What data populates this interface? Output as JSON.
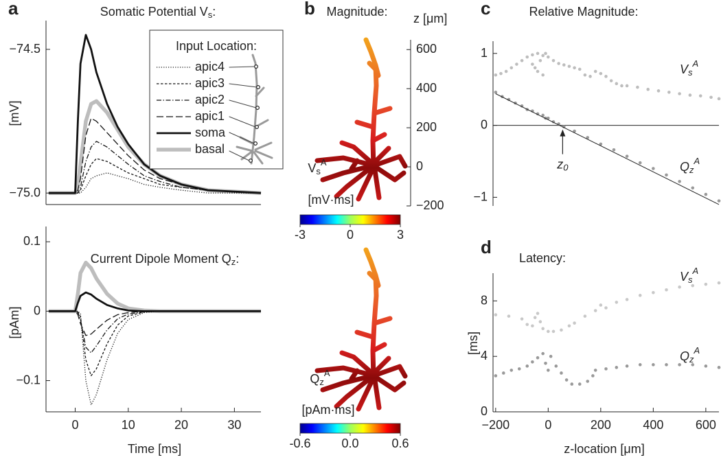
{
  "chart_data": [
    {
      "type": "line",
      "panel": "a",
      "title": "Somatic Potential V_s:",
      "ylabel": "[mV]",
      "xlim": [
        -5.5,
        35
      ],
      "ylim": [
        -75.04,
        -74.4
      ],
      "yticks": [
        {
          "value": -74.5,
          "label": "−74.5"
        },
        {
          "value": -75,
          "label": "−75.0"
        }
      ],
      "legend_title": "Input Location:",
      "legend": "upper right",
      "x": [
        -5,
        0,
        0.5,
        1,
        2,
        3,
        4,
        6,
        8,
        10,
        13,
        16,
        20,
        25,
        35
      ],
      "series": [
        {
          "name": "apic4",
          "color": "#111111",
          "style": "dotted",
          "linewidth": 1.3,
          "values": [
            -75,
            -75,
            -75,
            -75,
            -74.98,
            -74.95,
            -74.94,
            -74.93,
            -74.94,
            -74.95,
            -74.97,
            -74.98,
            -74.99,
            -75,
            -75
          ]
        },
        {
          "name": "apic3",
          "color": "#111111",
          "style": "dashed",
          "linewidth": 1.3,
          "values": [
            -75,
            -75,
            -75,
            -74.99,
            -74.94,
            -74.9,
            -74.88,
            -74.89,
            -74.91,
            -74.93,
            -74.95,
            -74.97,
            -74.98,
            -74.99,
            -75
          ]
        },
        {
          "name": "apic2",
          "color": "#111111",
          "style": "dash-dot",
          "linewidth": 1.3,
          "values": [
            -75,
            -75,
            -75,
            -74.98,
            -74.89,
            -74.84,
            -74.82,
            -74.84,
            -74.87,
            -74.9,
            -74.94,
            -74.96,
            -74.98,
            -74.99,
            -75
          ]
        },
        {
          "name": "apic1",
          "color": "#111111",
          "style": "long-dashed",
          "linewidth": 1.3,
          "values": [
            -75,
            -75,
            -74.99,
            -74.95,
            -74.8,
            -74.74,
            -74.75,
            -74.79,
            -74.83,
            -74.87,
            -74.92,
            -74.95,
            -74.97,
            -74.99,
            -75
          ]
        },
        {
          "name": "soma",
          "color": "#111111",
          "style": "solid",
          "linewidth": 2.8,
          "values": [
            -75,
            -75,
            -74.75,
            -74.55,
            -74.45,
            -74.5,
            -74.58,
            -74.69,
            -74.77,
            -74.83,
            -74.9,
            -74.94,
            -74.97,
            -74.99,
            -75
          ]
        },
        {
          "name": "basal",
          "color": "#bdbdbd",
          "style": "solid",
          "linewidth": 5.5,
          "values": [
            -75,
            -75,
            -74.97,
            -74.9,
            -74.75,
            -74.69,
            -74.68,
            -74.72,
            -74.78,
            -74.84,
            -74.9,
            -74.94,
            -74.97,
            -74.99,
            -75
          ]
        }
      ]
    },
    {
      "type": "line",
      "title": "Current Dipole Moment Q_z:",
      "ylabel": "[pAm]",
      "xlabel": "Time [ms]",
      "xlim": [
        -5.5,
        35
      ],
      "ylim": [
        -0.145,
        0.122
      ],
      "yticks": [
        0.1,
        0,
        {
          "value": -0.1,
          "label": "−0.1"
        }
      ],
      "xticks": [
        0,
        10,
        20,
        30
      ],
      "x": [
        -5,
        0,
        0.5,
        1,
        2,
        3,
        4,
        6,
        8,
        10,
        13,
        16,
        20,
        25,
        35
      ],
      "series": [
        {
          "color": "#111111",
          "style": "dotted",
          "linewidth": 1.3,
          "values": [
            0,
            0,
            0,
            -0.004,
            -0.1,
            -0.135,
            -0.12,
            -0.07,
            -0.032,
            -0.012,
            -0.002,
            0,
            0,
            0,
            0
          ]
        },
        {
          "color": "#111111",
          "style": "dashed",
          "linewidth": 1.3,
          "values": [
            0,
            0,
            -0.001,
            -0.008,
            -0.07,
            -0.093,
            -0.083,
            -0.047,
            -0.02,
            -0.007,
            -0.001,
            0,
            0,
            0,
            0
          ]
        },
        {
          "color": "#111111",
          "style": "dash-dot",
          "linewidth": 1.3,
          "values": [
            0,
            0,
            -0.002,
            -0.012,
            -0.052,
            -0.06,
            -0.05,
            -0.027,
            -0.011,
            -0.004,
            -0.001,
            0,
            0,
            0,
            0
          ]
        },
        {
          "color": "#111111",
          "style": "long-dashed",
          "linewidth": 1.3,
          "values": [
            0,
            0,
            -0.005,
            -0.018,
            -0.035,
            -0.033,
            -0.026,
            -0.013,
            -0.005,
            -0.002,
            0,
            0,
            0,
            0,
            0
          ]
        },
        {
          "color": "#111111",
          "style": "solid",
          "linewidth": 2.8,
          "values": [
            0,
            0,
            0.012,
            0.022,
            0.027,
            0.024,
            0.018,
            0.009,
            0.004,
            0.001,
            0,
            0,
            0,
            0,
            0
          ]
        },
        {
          "color": "#bdbdbd",
          "style": "solid",
          "linewidth": 5.5,
          "values": [
            0,
            0,
            0.025,
            0.055,
            0.07,
            0.062,
            0.047,
            0.025,
            0.011,
            0.004,
            0.001,
            0,
            0,
            0,
            0
          ]
        }
      ]
    },
    {
      "type": "morphology",
      "panel": "b",
      "title": "Magnitude:",
      "zlabel": "z [μm]",
      "zlim": [
        -200,
        650
      ],
      "zticks": [
        {
          "value": -200,
          "label": "−200"
        },
        0,
        200,
        400,
        600
      ],
      "colormap": "jet",
      "colorbars": [
        {
          "quantity": "V_s^A",
          "label": "[mV·ms]",
          "lim": [
            -3,
            3
          ],
          "ticks": [
            -3,
            0,
            3
          ]
        },
        {
          "quantity": "Q_z^A",
          "label": "[pAm·ms]",
          "lim": [
            -0.6,
            0.6
          ],
          "ticks": [
            -0.6,
            {
              "value": 0,
              "label": "0.0"
            },
            0.6
          ]
        }
      ]
    },
    {
      "type": "scatter",
      "panel": "c",
      "title": "Relative Magnitude:",
      "xlim": [
        -210,
        650
      ],
      "ylim": [
        -1.12,
        1.17
      ],
      "yticks": [
        1,
        0,
        {
          "value": -1,
          "label": "−1"
        }
      ],
      "xaxis_at_zero": true,
      "series": [
        {
          "name": "V_s^A",
          "color": "#bdbdbd",
          "x": [
            -200,
            -180,
            -160,
            -140,
            -120,
            -100,
            -80,
            -60,
            -40,
            -30,
            -20,
            -10,
            0,
            -50,
            -60,
            -40,
            -20,
            20,
            40,
            60,
            80,
            100,
            120,
            140,
            160,
            180,
            200,
            220,
            240,
            260,
            280,
            300,
            340,
            380,
            420,
            460,
            500,
            540,
            580,
            620,
            650
          ],
          "values": [
            0.7,
            0.72,
            0.75,
            0.8,
            0.85,
            0.9,
            0.95,
            0.98,
            1.0,
            0.9,
            0.97,
            1.0,
            0.95,
            0.8,
            0.85,
            0.75,
            0.7,
            0.9,
            0.86,
            0.84,
            0.82,
            0.8,
            0.78,
            0.7,
            0.68,
            0.75,
            0.72,
            0.68,
            0.62,
            0.58,
            0.55,
            0.55,
            0.53,
            0.5,
            0.48,
            0.46,
            0.44,
            0.42,
            0.41,
            0.39,
            0.37
          ]
        },
        {
          "name": "Q_z^A",
          "color": "#999999",
          "x": [
            -200,
            -175,
            -150,
            -125,
            -100,
            -80,
            -60,
            -40,
            -20,
            -10,
            0,
            20,
            40,
            60,
            100,
            150,
            200,
            250,
            300,
            350,
            400,
            450,
            500,
            550,
            600,
            650
          ],
          "values": [
            0.46,
            0.4,
            0.36,
            0.31,
            0.27,
            0.22,
            0.2,
            0.16,
            0.14,
            0.1,
            0.1,
            0.05,
            0.02,
            -0.02,
            -0.08,
            -0.17,
            -0.26,
            -0.34,
            -0.43,
            -0.52,
            -0.6,
            -0.69,
            -0.78,
            -0.87,
            -0.96,
            -1.05
          ]
        }
      ],
      "fit": {
        "color": "#222222",
        "x": [
          -200,
          650
        ],
        "values": [
          0.44,
          -1.1
        ]
      },
      "annotations": [
        {
          "text": "z_0",
          "x": 55
        }
      ]
    },
    {
      "type": "scatter",
      "panel": "d",
      "title": "Latency:",
      "ylabel": "[ms]",
      "xlabel": "z-location [μm]",
      "xlim": [
        -210,
        650
      ],
      "ylim": [
        0,
        10
      ],
      "yticks": [
        0,
        4,
        8
      ],
      "xticks": [
        {
          "value": -200,
          "label": "−200"
        },
        0,
        200,
        400,
        600
      ],
      "series": [
        {
          "name": "V_s^A",
          "color": "#c8c8c8",
          "x": [
            -200,
            -150,
            -100,
            -80,
            -60,
            -50,
            -40,
            -30,
            -20,
            0,
            20,
            50,
            80,
            100,
            140,
            180,
            200,
            220,
            260,
            300,
            350,
            400,
            450,
            500,
            550,
            600,
            650
          ],
          "values": [
            7,
            6.9,
            6.7,
            6.3,
            6.2,
            6.8,
            7.1,
            6.5,
            6.0,
            5.8,
            5.8,
            5.9,
            6.2,
            6.4,
            6.9,
            7.3,
            7.7,
            7.5,
            7.9,
            8.1,
            8.4,
            8.6,
            8.8,
            9.0,
            9.1,
            9.2,
            9.3
          ]
        },
        {
          "name": "Q_z^A",
          "color": "#999999",
          "x": [
            -200,
            -170,
            -140,
            -110,
            -80,
            -60,
            -40,
            -20,
            -10,
            0,
            10,
            30,
            50,
            70,
            90,
            120,
            150,
            170,
            180,
            220,
            260,
            300,
            350,
            400,
            450,
            500,
            550,
            600,
            650
          ],
          "values": [
            2.6,
            2.8,
            3.0,
            3.1,
            3.3,
            3.6,
            3.9,
            4.2,
            3.5,
            3.0,
            4.0,
            3.3,
            2.8,
            2.3,
            2.0,
            2.0,
            2.2,
            2.6,
            3.0,
            3.1,
            3.2,
            3.3,
            3.4,
            3.4,
            3.4,
            3.4,
            3.4,
            3.3,
            3.2
          ]
        }
      ]
    }
  ]
}
